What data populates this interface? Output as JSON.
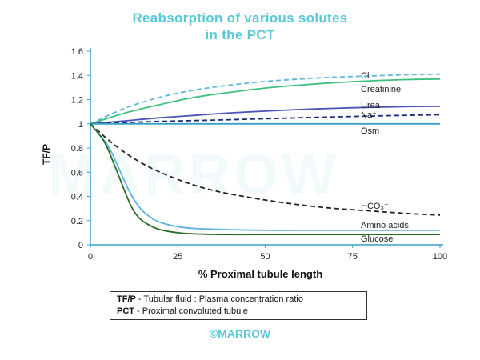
{
  "title_line1": "Reabsorption of various solutes",
  "title_line2": "in the PCT",
  "watermark": "MARROW",
  "legend": [
    {
      "term": "TF/P",
      "desc": " - Tubular fluid : Plasma concentration ratio"
    },
    {
      "term": "PCT",
      "desc": " - Proximal convoluted tubule"
    }
  ],
  "footer": "©MARROW",
  "chart_data": {
    "type": "line",
    "title": "Reabsorption of various solutes in the PCT",
    "xlabel": "% Proximal tubule length",
    "ylabel": "TF/P",
    "xlim": [
      0,
      100
    ],
    "ylim": [
      0,
      1.6
    ],
    "xticks": [
      0,
      25,
      50,
      75,
      100
    ],
    "yticks": [
      0,
      0.2,
      0.4,
      0.6,
      0.8,
      1,
      1.2,
      1.4,
      1.6
    ],
    "ytick_labels": [
      "0",
      "0.2",
      "0.4",
      "0.6",
      "0.8",
      "1",
      "1.2",
      "1.4",
      "1.6"
    ],
    "grid": false,
    "series": [
      {
        "name": "Cl⁻",
        "color": "#5bb8e0",
        "dash": true,
        "x": [
          0,
          10,
          20,
          30,
          40,
          50,
          60,
          70,
          80,
          90,
          100
        ],
        "y": [
          1.0,
          1.13,
          1.22,
          1.28,
          1.32,
          1.35,
          1.37,
          1.385,
          1.395,
          1.405,
          1.41
        ]
      },
      {
        "name": "Creatinine",
        "color": "#3fbf7f",
        "dash": false,
        "x": [
          0,
          10,
          20,
          30,
          40,
          50,
          60,
          70,
          80,
          90,
          100
        ],
        "y": [
          1.0,
          1.09,
          1.16,
          1.22,
          1.26,
          1.295,
          1.32,
          1.34,
          1.355,
          1.365,
          1.37
        ]
      },
      {
        "name": "Urea",
        "color": "#4a55b8",
        "dash": false,
        "x": [
          0,
          10,
          20,
          30,
          40,
          50,
          60,
          70,
          80,
          90,
          100
        ],
        "y": [
          1.0,
          1.025,
          1.05,
          1.07,
          1.09,
          1.105,
          1.118,
          1.128,
          1.136,
          1.142,
          1.145
        ]
      },
      {
        "name": "Na⁺",
        "color": "#1a2a80",
        "dash": true,
        "x": [
          0,
          10,
          20,
          30,
          40,
          50,
          60,
          70,
          80,
          90,
          100
        ],
        "y": [
          1.0,
          1.01,
          1.02,
          1.027,
          1.034,
          1.042,
          1.05,
          1.057,
          1.064,
          1.07,
          1.075
        ]
      },
      {
        "name": "Osm",
        "color": "#3aa0c8",
        "dash": false,
        "x": [
          0,
          25,
          50,
          75,
          100
        ],
        "y": [
          1.0,
          1.0,
          1.0,
          1.0,
          1.0
        ]
      },
      {
        "name": "HCO₃⁻",
        "color": "#222222",
        "dash": true,
        "x": [
          0,
          5,
          10,
          15,
          20,
          25,
          30,
          35,
          40,
          50,
          60,
          70,
          80,
          90,
          100
        ],
        "y": [
          1.0,
          0.87,
          0.76,
          0.67,
          0.6,
          0.54,
          0.49,
          0.45,
          0.42,
          0.37,
          0.33,
          0.3,
          0.28,
          0.26,
          0.245
        ]
      },
      {
        "name": "Amino acids",
        "color": "#5bb4e4",
        "dash": false,
        "x": [
          0,
          5,
          8,
          11,
          14,
          17,
          20,
          25,
          30,
          40,
          50,
          60,
          70,
          80,
          90,
          100
        ],
        "y": [
          1.0,
          0.82,
          0.64,
          0.45,
          0.31,
          0.23,
          0.185,
          0.15,
          0.135,
          0.125,
          0.12,
          0.12,
          0.12,
          0.12,
          0.12,
          0.12
        ]
      },
      {
        "name": "Glucose",
        "color": "#2a6b2a",
        "dash": false,
        "x": [
          0,
          4,
          7,
          10,
          12,
          14,
          17,
          20,
          25,
          30,
          40,
          50,
          60,
          70,
          80,
          90,
          100
        ],
        "y": [
          1.0,
          0.85,
          0.65,
          0.43,
          0.3,
          0.22,
          0.16,
          0.125,
          0.1,
          0.09,
          0.085,
          0.085,
          0.085,
          0.085,
          0.085,
          0.085,
          0.085
        ]
      }
    ],
    "annotations": [
      {
        "text": "Cl⁻",
        "series": "Cl⁻"
      },
      {
        "text": "Creatinine",
        "series": "Creatinine"
      },
      {
        "text": "Urea",
        "series": "Urea"
      },
      {
        "text": "Na⁺",
        "series": "Na⁺"
      },
      {
        "text": "Osm",
        "series": "Osm"
      },
      {
        "text": "HCO₃⁻",
        "series": "HCO₃⁻"
      },
      {
        "text": "Amino acids",
        "series": "Amino acids"
      },
      {
        "text": "Glucose",
        "series": "Glucose"
      }
    ]
  }
}
